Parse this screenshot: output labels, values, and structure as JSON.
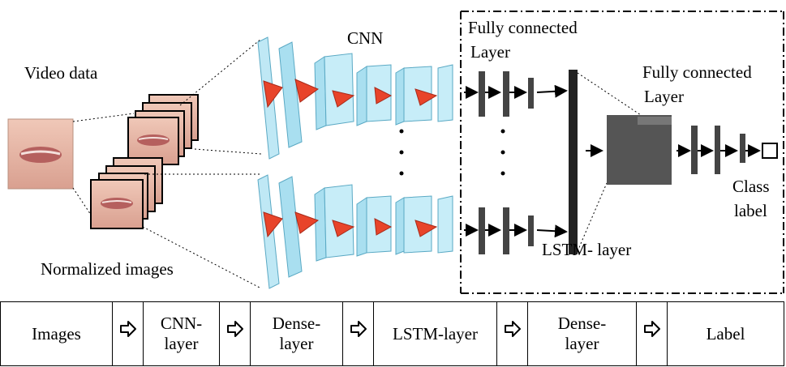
{
  "labels": {
    "video_data": "Video data",
    "cnn": "CNN",
    "fc_layer_1_line1": "Fully connected",
    "fc_layer_1_line2": "Layer",
    "fc_layer_2_line1": "Fully connected",
    "fc_layer_2_line2": "Layer",
    "class_label_line1": "Class",
    "class_label_line2": "label",
    "lstm_layer": "LSTM- layer",
    "normalized_images": "Normalized images"
  },
  "flow": {
    "steps": [
      {
        "line1": "Images",
        "line2": ""
      },
      {
        "line1": "CNN-",
        "line2": "layer"
      },
      {
        "line1": "Dense-",
        "line2": "layer"
      },
      {
        "line1": "LSTM-layer",
        "line2": ""
      },
      {
        "line1": "Dense-",
        "line2": "layer"
      },
      {
        "line1": "Label",
        "line2": ""
      }
    ],
    "arrow_icon": "hollow-right-arrow-icon"
  },
  "colors": {
    "cnn_block": "#a9dff0",
    "cnn_block_edge": "#5aa9c4",
    "kernel": "#e8442a",
    "dense_bar": "#444444",
    "lstm_bar": "#222222",
    "lips_skin": "#e6b6a6",
    "lips": "#b05a5a"
  }
}
